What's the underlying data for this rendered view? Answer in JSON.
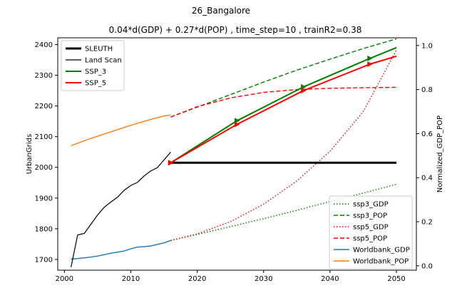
{
  "chart_data": {
    "type": "line",
    "suptitle": "26_Bangalore",
    "title": "0.04*d(GDP) + 0.27*d(POP) , time_step=10 , trainR2=0.38",
    "xlabel": "",
    "ylabel_left": "UrbanGrids",
    "ylabel_right": "Normalized_GDP_POP",
    "xlim": [
      1999,
      2053
    ],
    "ylim_left": [
      1665,
      2422
    ],
    "ylim_right": [
      -0.02,
      1.035
    ],
    "xticks": [
      2000,
      2010,
      2020,
      2030,
      2040,
      2050
    ],
    "yticks_left": [
      1700,
      1800,
      1900,
      2000,
      2100,
      2200,
      2300,
      2400
    ],
    "yticks_right": [
      0.0,
      0.2,
      0.4,
      0.6,
      0.8,
      1.0
    ],
    "legend_left_position": "upper-left",
    "legend_right_position": "lower-right",
    "grid": false,
    "series_left": [
      {
        "name": "SLEUTH",
        "color": "#000000",
        "style": "solid",
        "width": 3,
        "x": [
          2016,
          2050
        ],
        "y": [
          2015,
          2015
        ]
      },
      {
        "name": "Land Scan",
        "color": "#000000",
        "style": "solid",
        "width": 1.2,
        "x": [
          2001,
          2002,
          2003,
          2004,
          2005,
          2006,
          2007,
          2008,
          2009,
          2010,
          2011,
          2012,
          2013,
          2014,
          2015,
          2016
        ],
        "y": [
          1675,
          1780,
          1785,
          1815,
          1845,
          1870,
          1887,
          1903,
          1925,
          1941,
          1951,
          1972,
          1988,
          1999,
          2024,
          2050
        ]
      },
      {
        "name": "SSP_3",
        "color": "#008000",
        "style": "solid",
        "width": 2,
        "marker": "triangle-right",
        "x": [
          2016,
          2026,
          2036,
          2046,
          2050
        ],
        "y": [
          2015,
          2152,
          2262,
          2355,
          2390
        ]
      },
      {
        "name": "SSP_5",
        "color": "#ff0000",
        "style": "solid",
        "width": 2,
        "marker": "triangle-right",
        "x": [
          2016,
          2026,
          2036,
          2046,
          2050
        ],
        "y": [
          2015,
          2140,
          2250,
          2336,
          2362
        ]
      }
    ],
    "series_right": [
      {
        "name": "ssp3_GDP",
        "color": "#008000",
        "style": "dotted",
        "x": [
          2016,
          2020,
          2025,
          2030,
          2035,
          2040,
          2045,
          2050
        ],
        "y": [
          0.115,
          0.142,
          0.178,
          0.214,
          0.252,
          0.292,
          0.33,
          0.37
        ]
      },
      {
        "name": "ssp3_POP",
        "color": "#008000",
        "style": "dashed",
        "x": [
          2016,
          2020,
          2025,
          2030,
          2035,
          2040,
          2045,
          2050
        ],
        "y": [
          0.675,
          0.72,
          0.777,
          0.834,
          0.888,
          0.938,
          0.986,
          1.03
        ]
      },
      {
        "name": "ssp5_GDP",
        "color": "#ff0000",
        "style": "dotted",
        "x": [
          2016,
          2020,
          2025,
          2030,
          2035,
          2040,
          2045,
          2050
        ],
        "y": [
          0.115,
          0.145,
          0.2,
          0.28,
          0.385,
          0.52,
          0.7,
          0.98
        ]
      },
      {
        "name": "ssp5_POP",
        "color": "#ff0000",
        "style": "dashed",
        "x": [
          2016,
          2020,
          2025,
          2030,
          2035,
          2040,
          2045,
          2050
        ],
        "y": [
          0.675,
          0.722,
          0.762,
          0.787,
          0.8,
          0.806,
          0.808,
          0.81
        ]
      },
      {
        "name": "Worldbank_GDP",
        "color": "#1f77b4",
        "style": "solid",
        "x": [
          2001,
          2003,
          2005,
          2007,
          2009,
          2010,
          2011,
          2012,
          2013,
          2014,
          2015,
          2016
        ],
        "y": [
          0.03,
          0.036,
          0.044,
          0.057,
          0.067,
          0.077,
          0.085,
          0.087,
          0.09,
          0.097,
          0.104,
          0.115
        ]
      },
      {
        "name": "Worldbank_POP",
        "color": "#ff7f0e",
        "style": "solid",
        "x": [
          2001,
          2003,
          2005,
          2007,
          2009,
          2011,
          2013,
          2015,
          2016
        ],
        "y": [
          0.545,
          0.568,
          0.588,
          0.608,
          0.628,
          0.647,
          0.664,
          0.68,
          0.685
        ]
      }
    ]
  }
}
